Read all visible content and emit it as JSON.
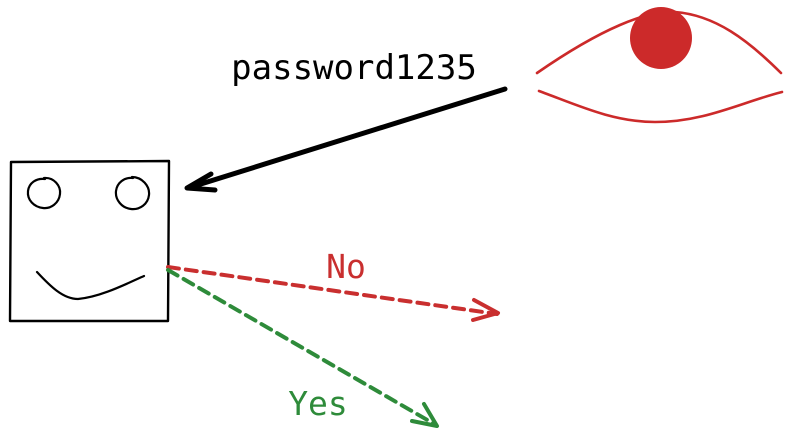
{
  "diagram": {
    "password_label": "password1235",
    "no_label": "No",
    "yes_label": "Yes"
  },
  "icons": {
    "observer": "eye-icon",
    "checker": "face-box-icon"
  },
  "colors": {
    "ink": "#000000",
    "eye": "#cc2a2a",
    "no": "#c92f2f",
    "yes": "#2e8b3a",
    "background": "#ffffff"
  }
}
